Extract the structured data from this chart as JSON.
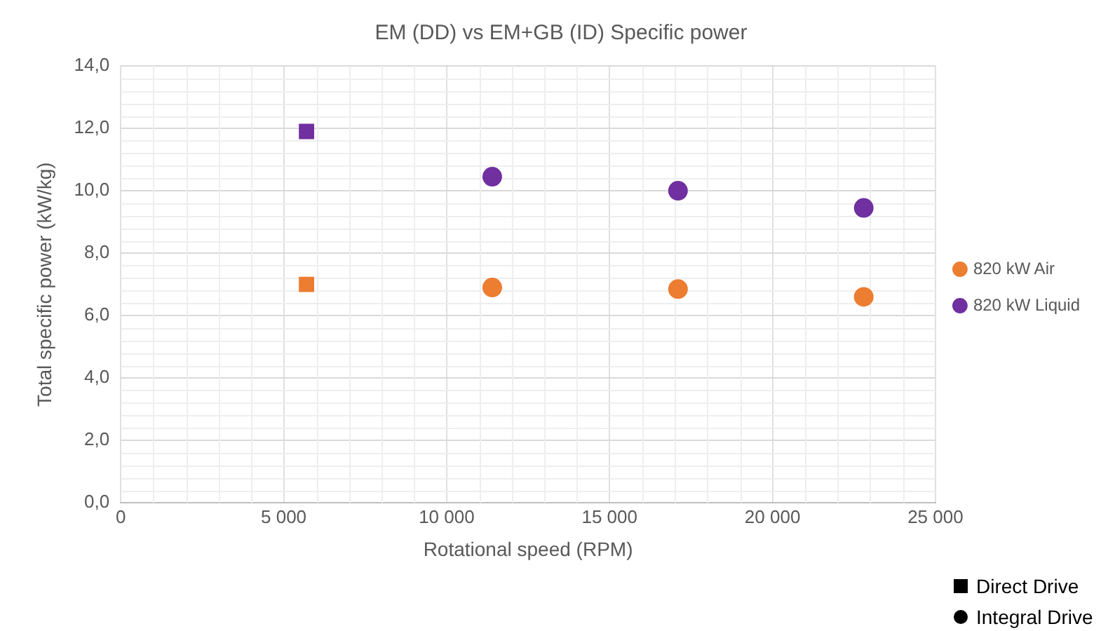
{
  "chart_data": {
    "type": "scatter",
    "title": "EM (DD) vs EM+GB (ID) Specific power",
    "xlabel": "Rotational speed (RPM)",
    "ylabel": "Total specific power (kW/kg)",
    "xlim": [
      0,
      25000
    ],
    "xticks": [
      {
        "value": 0,
        "label": "0"
      },
      {
        "value": 5000,
        "label": "5 000"
      },
      {
        "value": 10000,
        "label": "10 000"
      },
      {
        "value": 15000,
        "label": "15 000"
      },
      {
        "value": 20000,
        "label": "20 000"
      },
      {
        "value": 25000,
        "label": "25 000"
      }
    ],
    "ylim": [
      0,
      14
    ],
    "yticks": [
      {
        "value": 0,
        "label": "0,0"
      },
      {
        "value": 2,
        "label": "2,0"
      },
      {
        "value": 4,
        "label": "4,0"
      },
      {
        "value": 6,
        "label": "6,0"
      },
      {
        "value": 8,
        "label": "8,0"
      },
      {
        "value": 10,
        "label": "10,0"
      },
      {
        "value": 12,
        "label": "12,0"
      },
      {
        "value": 14,
        "label": "14,0"
      }
    ],
    "grid": true,
    "legend": "right",
    "series": [
      {
        "name": "820 kW Air",
        "color": "#ed7d31",
        "marker": "circle",
        "x": [
          11400,
          17100,
          22800
        ],
        "values": [
          6.9,
          6.85,
          6.6
        ]
      },
      {
        "name": "820 kW Liquid",
        "color": "#7030a0",
        "marker": "circle",
        "x": [
          11400,
          17100,
          22800
        ],
        "values": [
          10.45,
          10.0,
          9.45
        ]
      },
      {
        "color": "#ed7d31",
        "marker": "square",
        "x": [
          5700
        ],
        "values": [
          7.0
        ]
      },
      {
        "color": "#7030a0",
        "marker": "square",
        "x": [
          5700
        ],
        "values": [
          11.9
        ]
      }
    ],
    "annotations": [
      "Direct Drive",
      "Integral Drive"
    ]
  }
}
